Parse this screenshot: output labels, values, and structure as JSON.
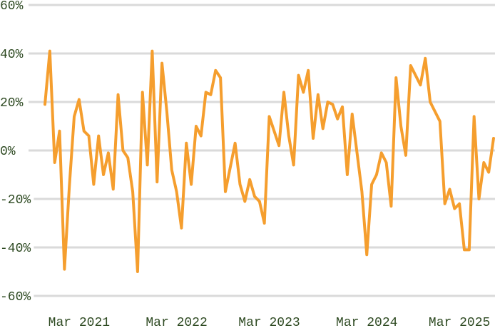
{
  "chart_data": {
    "type": "line",
    "categories": [
      null,
      null,
      null,
      null,
      null,
      null,
      null,
      "Mar 2021",
      null,
      null,
      null,
      null,
      null,
      null,
      null,
      null,
      null,
      null,
      null,
      null,
      null,
      null,
      null,
      null,
      null,
      null,
      null,
      "Mar 2022",
      null,
      null,
      null,
      null,
      null,
      null,
      null,
      null,
      null,
      null,
      null,
      null,
      null,
      null,
      null,
      null,
      null,
      null,
      "Mar 2023",
      null,
      null,
      null,
      null,
      null,
      null,
      null,
      null,
      null,
      null,
      null,
      null,
      null,
      null,
      null,
      null,
      null,
      null,
      null,
      "Mar 2024",
      null,
      null,
      null,
      null,
      null,
      null,
      null,
      null,
      null,
      null,
      null,
      null,
      null,
      null,
      null,
      null,
      null,
      null,
      "Mar 2025",
      null,
      null,
      null,
      null,
      null,
      null,
      null
    ],
    "series": [
      {
        "color": "#f59e2e",
        "values": [
          19,
          41,
          -5,
          8,
          -49,
          -15,
          14,
          21,
          8,
          6,
          -14,
          6,
          -10,
          -1,
          -16,
          23,
          0,
          -3,
          -17,
          -50,
          24,
          -6,
          41,
          -13,
          36,
          16,
          -8,
          -17,
          -32,
          3,
          -14,
          10,
          6,
          24,
          23,
          33,
          30,
          -17,
          -7,
          3,
          -14,
          -21,
          -12,
          -19,
          -21,
          -30,
          14,
          8,
          2,
          24,
          6,
          -6,
          31,
          24,
          33,
          5,
          23,
          9,
          20,
          19,
          13,
          18,
          -10,
          15,
          -1,
          -17,
          -43,
          -14,
          -10,
          -1,
          -5,
          -23,
          30,
          10,
          -2,
          35,
          31,
          27,
          38,
          20,
          16,
          12,
          -22,
          -16,
          -24,
          -22,
          -41,
          -41,
          14,
          -20,
          -5,
          -9,
          5
        ]
      }
    ],
    "ylim": [
      -60,
      60
    ],
    "yticks": [
      {
        "value": -60,
        "label": "-60%"
      },
      {
        "value": -40,
        "label": "-40%"
      },
      {
        "value": -20,
        "label": "-20%"
      },
      {
        "value": 0,
        "label": "0%"
      },
      {
        "value": 20,
        "label": "20%"
      },
      {
        "value": 40,
        "label": "40%"
      },
      {
        "value": 60,
        "label": "60%"
      }
    ],
    "grid": true
  }
}
